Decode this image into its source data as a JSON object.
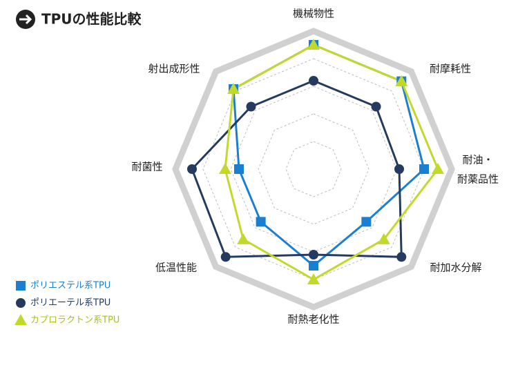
{
  "chart_data": {
    "type": "radar",
    "title": "TPUの性能比較",
    "categories": [
      "機械物性",
      "耐摩耗性",
      [
        "耐油・",
        "耐薬品性"
      ],
      "耐加水分解",
      "耐熱老化性",
      "低温性能",
      "耐菌性",
      "射出成形性"
    ],
    "rlim": [
      0,
      5
    ],
    "rticks": [
      1,
      2,
      3,
      4,
      5
    ],
    "grid": true,
    "series": [
      {
        "name": "ポリエステル系TPU",
        "color": "#1a7fd0",
        "marker": "square",
        "values": [
          4.5,
          4.5,
          4.0,
          2.7,
          3.5,
          2.7,
          2.7,
          4.1
        ]
      },
      {
        "name": "ポリエーテル系TPU",
        "color": "#243a5e",
        "marker": "circle",
        "values": [
          3.2,
          3.2,
          3.1,
          4.5,
          3.1,
          4.5,
          4.4,
          3.2
        ]
      },
      {
        "name": "カプロラクトン系TPU",
        "color": "#c3d92a",
        "marker": "triangle",
        "values": [
          4.5,
          4.5,
          4.5,
          3.6,
          4.0,
          3.6,
          3.2,
          4.1
        ]
      }
    ]
  }
}
